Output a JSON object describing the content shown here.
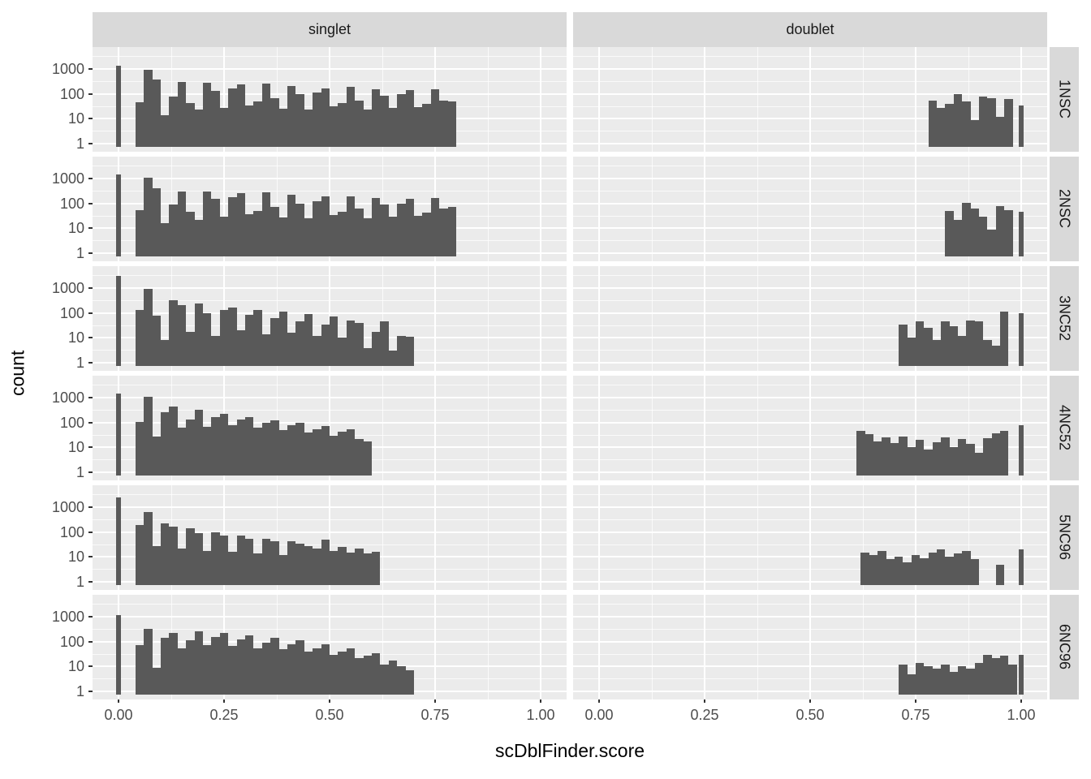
{
  "figure": {
    "x_axis_title": "scDblFinder.score",
    "y_axis_title": "count",
    "col_labels": [
      "singlet",
      "doublet"
    ],
    "row_labels": [
      "1NSC",
      "2NSC",
      "3NC52",
      "4NC52",
      "5NC96",
      "6NC96"
    ],
    "x_tick_labels": [
      "0.00",
      "0.25",
      "0.50",
      "0.75",
      "1.00"
    ],
    "y_tick_labels": [
      "1000",
      "100",
      "10",
      "1"
    ],
    "colors": {
      "bar": "#595959",
      "panel_background": "#EBEBEB",
      "strip_background": "#D9D9D9",
      "grid_major": "#FFFFFF",
      "axis_text": "#4D4D4D",
      "title_text": "#000000"
    }
  },
  "chart_data": {
    "type": "bar",
    "subtype": "faceted_histogram_log_y",
    "title": "",
    "xlabel": "scDblFinder.score",
    "ylabel": "count",
    "facet_cols": [
      "singlet",
      "doublet"
    ],
    "facet_rows": [
      "1NSC",
      "2NSC",
      "3NC52",
      "4NC52",
      "5NC96",
      "6NC96"
    ],
    "x_ticks": [
      0,
      0.25,
      0.5,
      0.75,
      1.0
    ],
    "x_minor_ticks": [
      0.125,
      0.375,
      0.625,
      0.875
    ],
    "y_scale": "log10",
    "y_ticks": [
      1000,
      100,
      10,
      1
    ],
    "y_minor_exponents": [
      0.5,
      1.5,
      2.5,
      3.5
    ],
    "xlim": [
      -0.06,
      1.06
    ],
    "binwidth": 0.02,
    "panels": [
      {
        "row": "1NSC",
        "col": "singlet",
        "zero_spike": 1300,
        "x0": 0.04,
        "counts": [
          45,
          900,
          380,
          14,
          75,
          290,
          42,
          24,
          280,
          130,
          28,
          160,
          240,
          33,
          48,
          250,
          65,
          26,
          210,
          95,
          24,
          115,
          170,
          32,
          42,
          185,
          55,
          24,
          150,
          85,
          28,
          95,
          145,
          30,
          40,
          150,
          55,
          48
        ]
      },
      {
        "row": "1NSC",
        "col": "doublet",
        "x0": 0.78,
        "counts": [
          55,
          28,
          40,
          95,
          48,
          9,
          80,
          68,
          12,
          60
        ],
        "one_spike": 35
      },
      {
        "row": "2NSC",
        "col": "singlet",
        "zero_spike": 1400,
        "x0": 0.04,
        "counts": [
          55,
          1100,
          420,
          16,
          90,
          310,
          45,
          22,
          300,
          150,
          30,
          180,
          260,
          36,
          50,
          270,
          70,
          28,
          220,
          100,
          26,
          125,
          185,
          34,
          45,
          195,
          60,
          26,
          160,
          90,
          30,
          100,
          155,
          32,
          42,
          160,
          60,
          70
        ]
      },
      {
        "row": "2NSC",
        "col": "doublet",
        "x0": 0.82,
        "counts": [
          48,
          22,
          105,
          62,
          30,
          9,
          78,
          52
        ],
        "one_spike": 45
      },
      {
        "row": "3NC52",
        "col": "singlet",
        "zero_spike": 3000,
        "x0": 0.04,
        "counts": [
          130,
          950,
          75,
          8,
          330,
          210,
          18,
          240,
          95,
          12,
          130,
          160,
          20,
          85,
          130,
          14,
          60,
          110,
          16,
          45,
          90,
          12,
          35,
          70,
          10,
          48,
          40,
          4,
          18,
          45,
          3,
          12,
          11
        ]
      },
      {
        "row": "3NC52",
        "col": "doublet",
        "x0": 0.71,
        "counts": [
          35,
          10,
          45,
          25,
          8,
          45,
          30,
          12,
          50,
          45,
          8,
          5,
          110
        ],
        "one_spike": 100
      },
      {
        "row": "4NC52",
        "col": "singlet",
        "zero_spike": 1500,
        "x0": 0.04,
        "counts": [
          105,
          1050,
          28,
          260,
          440,
          60,
          130,
          330,
          65,
          170,
          230,
          75,
          130,
          160,
          60,
          95,
          120,
          48,
          75,
          95,
          40,
          55,
          70,
          30,
          42,
          55,
          22,
          18
        ]
      },
      {
        "row": "4NC52",
        "col": "doublet",
        "x0": 0.61,
        "counts": [
          45,
          33,
          18,
          25,
          15,
          28,
          10,
          20,
          8,
          16,
          25,
          10,
          22,
          14,
          6,
          24,
          38,
          45
        ],
        "one_spike": 80
      },
      {
        "row": "5NC96",
        "col": "singlet",
        "zero_spike": 2500,
        "x0": 0.04,
        "counts": [
          190,
          620,
          28,
          230,
          160,
          22,
          140,
          90,
          18,
          95,
          70,
          16,
          70,
          55,
          14,
          55,
          42,
          12,
          42,
          35,
          28,
          22,
          48,
          18,
          26,
          15,
          22,
          14,
          16
        ]
      },
      {
        "row": "5NC96",
        "col": "doublet",
        "x0": 0.62,
        "counts": [
          15,
          12,
          18,
          8,
          10,
          6,
          12,
          9,
          15,
          20,
          10,
          14,
          18,
          8,
          0,
          0,
          5
        ],
        "one_spike": 20
      },
      {
        "row": "6NC96",
        "col": "singlet",
        "zero_spike": 1200,
        "x0": 0.04,
        "counts": [
          70,
          330,
          9,
          140,
          230,
          55,
          110,
          260,
          70,
          150,
          230,
          65,
          120,
          180,
          55,
          90,
          140,
          48,
          75,
          110,
          40,
          55,
          80,
          30,
          40,
          55,
          22,
          28,
          35,
          12,
          18,
          10,
          7
        ]
      },
      {
        "row": "6NC96",
        "col": "doublet",
        "x0": 0.71,
        "counts": [
          12,
          5,
          14,
          10,
          8,
          12,
          6,
          10,
          8,
          14,
          30,
          22,
          28,
          12
        ],
        "one_spike": 30
      }
    ]
  }
}
